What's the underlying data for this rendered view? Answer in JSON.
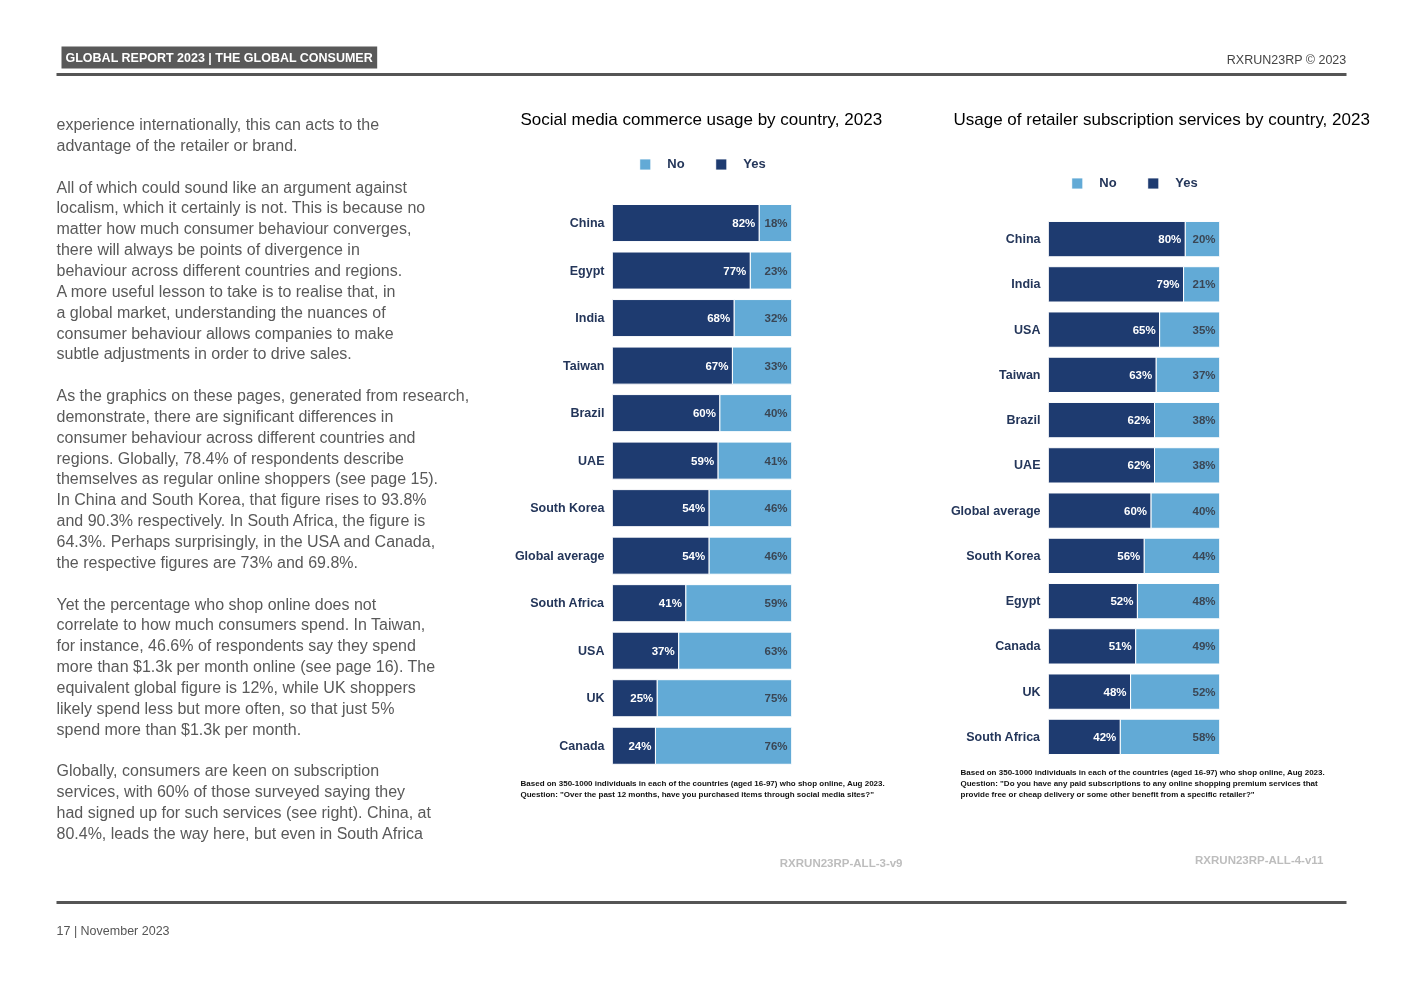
{
  "chart_data": [
    {
      "type": "other",
      "title": "GLOBAL REPORT 2023 | THE GLOBAL CONSUMER",
      "annotations": [
        "RXRUN23RP © 2023",
        "experience internationally, this can acts to the\nadvantage of the retailer or brand.",
        "All of which could sound like an argument against\nlocalism, which it certainly is not. This is because no\nmatter how much consumer behaviour converges,\nthere will always be points of divergence in\nbehaviour across different countries and regions.\nA more useful lesson to take is to realise that, in\na global market, understanding the nuances of\nconsumer behaviour allows companies to make\nsubtle adjustments in order to drive sales.",
        "As the graphics on these pages, generated from research,\ndemonstrate, there are significant differences in\nconsumer behaviour across different countries and\nregions. Globally, 78.4% of respondents describe\nthemselves as regular online shoppers (see page 15).\nIn China and South Korea, that figure rises to 93.8%\nand 90.3% respectively. In South Africa, the figure is\n64.3%. Perhaps surprisingly, in the USA and Canada,\nthe respective figures are 73% and 69.8%.",
        "Yet the percentage who shop online does not\ncorrelate to how much consumers spend. In Taiwan,\nfor instance, 46.6% of respondents say they spend\nmore than $1.3k per month online (see page 16). The\nequivalent global figure is 12%, while UK shoppers\nlikely spend less but more often, so that just 5%\nspend more than $1.3k per month.",
        "Globally, consumers are keen on subscription\nservices, with 60% of those surveyed saying they\nhad signed up for such services (see right). China, at\n80.4%, leads the way here, but even in South Africa",
        "17 | November 2023"
      ]
    },
    {
      "type": "bar",
      "orientation": "horizontal",
      "stacked": true,
      "title": "Social media commerce usage by country, 2023",
      "categories": [
        "China",
        "Egypt",
        "India",
        "Taiwan",
        "Brazil",
        "UAE",
        "South Korea",
        "Global average",
        "South Africa",
        "USA",
        "UK",
        "Canada"
      ],
      "series": [
        {
          "name": "Yes",
          "color": "#1e3b70",
          "values": [
            82,
            77,
            68,
            67,
            60,
            59,
            54,
            54,
            41,
            37,
            25,
            24
          ],
          "value_labels": [
            "82%",
            "77%",
            "68%",
            "67%",
            "60%",
            "59%",
            "54%",
            "54%",
            "41%",
            "37%",
            "25%",
            "24%"
          ]
        },
        {
          "name": "No",
          "color": "#62aad6",
          "values": [
            18,
            23,
            32,
            33,
            40,
            41,
            46,
            46,
            59,
            63,
            75,
            76
          ],
          "value_labels": [
            "18%",
            "23%",
            "32%",
            "33%",
            "40%",
            "41%",
            "46%",
            "46%",
            "59%",
            "63%",
            "75%",
            "76%"
          ]
        }
      ],
      "xlim": [
        0,
        100
      ],
      "tick_labels": "y",
      "legend": "top",
      "annotations": [
        "Based on 350-1000 individuals in each of the countries (aged 16-97) who shop online, Aug 2023.",
        "Question: \"Over the past 12 months, have you purchased items through social media sites?\"",
        "RXRUN23RP-ALL-3-v9"
      ]
    },
    {
      "type": "bar",
      "orientation": "horizontal",
      "stacked": true,
      "title": "Usage of retailer subscription services by country, 2023",
      "categories": [
        "China",
        "India",
        "USA",
        "Taiwan",
        "Brazil",
        "UAE",
        "Global average",
        "South Korea",
        "Egypt",
        "Canada",
        "UK",
        "South Africa"
      ],
      "series": [
        {
          "name": "Yes",
          "color": "#1e3b70",
          "values": [
            80,
            79,
            65,
            63,
            62,
            62,
            60,
            56,
            52,
            51,
            48,
            42
          ],
          "value_labels": [
            "80%",
            "79%",
            "65%",
            "63%",
            "62%",
            "62%",
            "60%",
            "56%",
            "52%",
            "51%",
            "48%",
            "42%"
          ]
        },
        {
          "name": "No",
          "color": "#62aad6",
          "values": [
            20,
            21,
            35,
            37,
            38,
            38,
            40,
            44,
            48,
            49,
            52,
            58
          ],
          "value_labels": [
            "20%",
            "21%",
            "35%",
            "37%",
            "38%",
            "38%",
            "40%",
            "44%",
            "48%",
            "49%",
            "52%",
            "58%"
          ]
        }
      ],
      "xlim": [
        0,
        100
      ],
      "tick_labels": "y",
      "legend": "top",
      "annotations": [
        "Based on 350-1000 individuals in each of the countries (aged 16-97) who shop online, Aug 2023.",
        "Question: \"Do you have any paid subscriptions to any online shopping premium services that provide free or cheap delivery or some other benefit from a specific retailer?\"",
        "RXRUN23RP-ALL-4-v11"
      ]
    }
  ]
}
